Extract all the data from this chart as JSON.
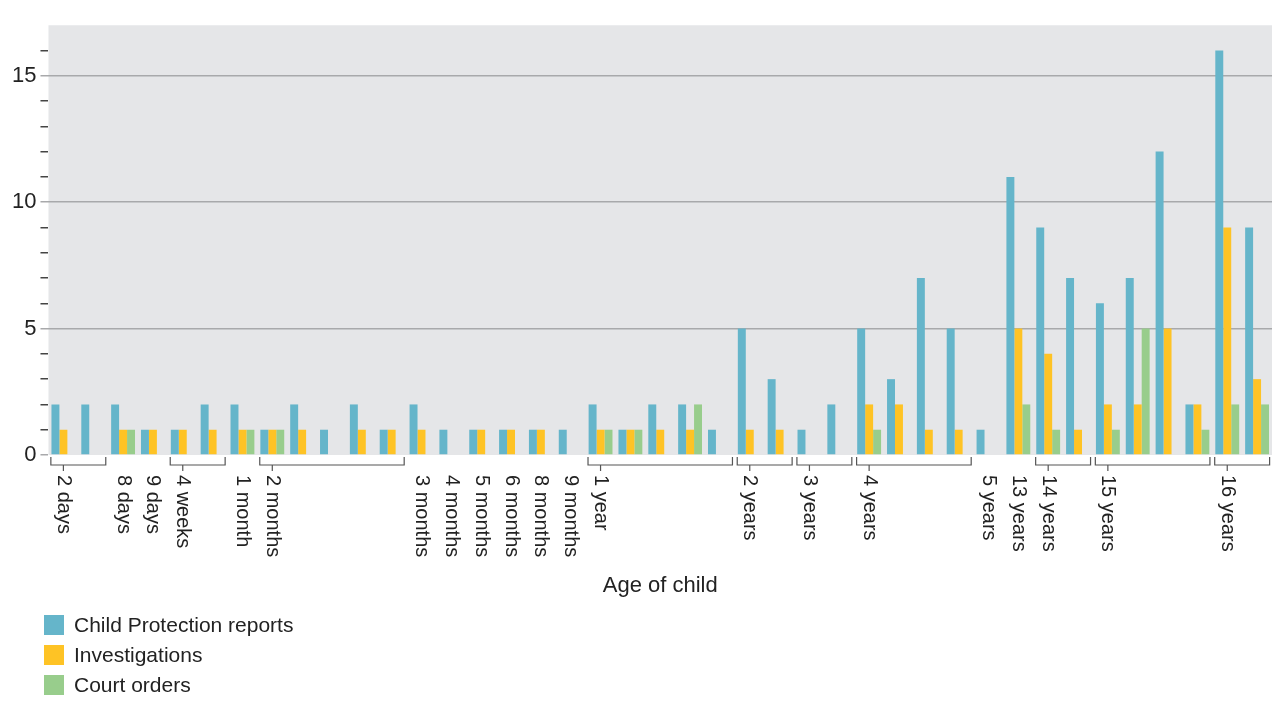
{
  "chart_data": {
    "type": "bar",
    "xlabel": "Age of child",
    "categories": [
      "2 days",
      null,
      "8 days",
      "9 days",
      "4 weeks",
      null,
      "1 month",
      "2 months",
      null,
      null,
      null,
      null,
      "3 months",
      "4 months",
      "5 months",
      "6 months",
      "8 months",
      "9 months",
      "1 year",
      null,
      null,
      null,
      null,
      "2 years",
      null,
      "3 years",
      null,
      "4 years",
      null,
      null,
      null,
      "5 years",
      "13 years",
      "14 years",
      null,
      "15 years",
      null,
      null,
      null,
      "16 years",
      null
    ],
    "series": [
      {
        "name": "Child Protection reports",
        "color": "#65b5ca",
        "values": [
          2,
          2,
          2,
          1,
          1,
          2,
          2,
          1,
          2,
          1,
          2,
          1,
          2,
          1,
          1,
          1,
          1,
          1,
          2,
          1,
          2,
          2,
          1,
          5,
          3,
          1,
          2,
          5,
          3,
          7,
          5,
          1,
          11,
          9,
          7,
          6,
          7,
          12,
          2,
          16,
          9
        ]
      },
      {
        "name": "Investigations",
        "color": "#fec325",
        "values": [
          1,
          0,
          1,
          1,
          1,
          1,
          1,
          1,
          1,
          0,
          1,
          1,
          1,
          0,
          1,
          1,
          1,
          0,
          1,
          1,
          1,
          1,
          0,
          1,
          1,
          0,
          0,
          2,
          2,
          1,
          1,
          0,
          5,
          4,
          1,
          2,
          2,
          5,
          2,
          9,
          3
        ]
      },
      {
        "name": "Court orders",
        "color": "#98cd8c",
        "values": [
          0,
          0,
          1,
          0,
          0,
          0,
          1,
          1,
          0,
          0,
          0,
          0,
          0,
          0,
          0,
          0,
          0,
          0,
          1,
          1,
          0,
          2,
          0,
          0,
          0,
          0,
          0,
          1,
          0,
          0,
          0,
          0,
          2,
          1,
          0,
          1,
          5,
          0,
          1,
          2,
          2
        ]
      }
    ],
    "ylim": [
      0,
      17
    ],
    "yticks": [
      0,
      {
        "value": 1,
        "label": null
      },
      {
        "value": 2,
        "label": null
      },
      {
        "value": 3,
        "label": null
      },
      {
        "value": 4,
        "label": null
      },
      5,
      {
        "value": 6,
        "label": null
      },
      {
        "value": 7,
        "label": null
      },
      {
        "value": 8,
        "label": null
      },
      {
        "value": 9,
        "label": null
      },
      10,
      {
        "value": 11,
        "label": null
      },
      {
        "value": 12,
        "label": null
      },
      {
        "value": 13,
        "label": null
      },
      {
        "value": 14,
        "label": null
      },
      15,
      {
        "value": 16,
        "label": null
      }
    ],
    "grid": "y",
    "legend": "bottom left"
  }
}
